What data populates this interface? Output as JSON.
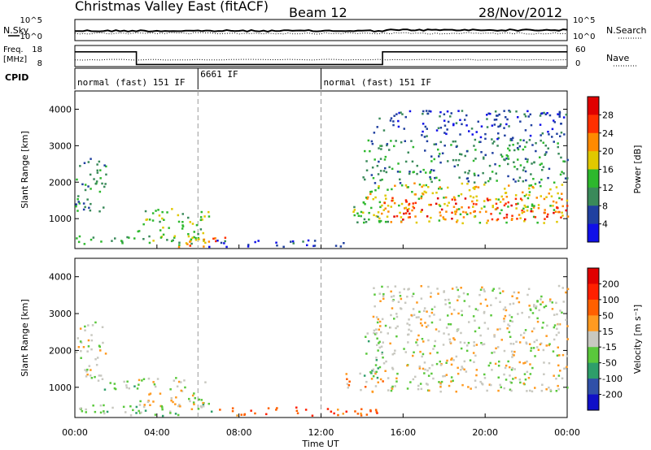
{
  "header": {
    "title": "Christmas Valley East (fitACF)",
    "beam": "Beam 12",
    "date": "28/Nov/2012"
  },
  "params": {
    "nsky_label": "N.Sky",
    "nsearch_label": "N.Search",
    "noise_ticks": [
      "10^5",
      "10^0"
    ],
    "freq_label": "Freq.",
    "freq_unit": "[MHz]",
    "freq_ticks": [
      "18",
      "8"
    ],
    "nave_label": "Nave",
    "nave_ticks": [
      "60",
      "0"
    ],
    "cpid_label": "CPID",
    "cpid_segments": [
      {
        "label": "normal (fast) 151 IF",
        "start_h": 0,
        "end_h": 6
      },
      {
        "label": "6661 IF",
        "start_h": 6,
        "end_h": 12
      },
      {
        "label": "normal (fast) 151 IF",
        "start_h": 12,
        "end_h": 24
      }
    ],
    "freq_series": [
      {
        "h": 0,
        "v": 15
      },
      {
        "h": 3,
        "v": 15
      },
      {
        "h": 3,
        "v": 9
      },
      {
        "h": 15,
        "v": 9
      },
      {
        "h": 15,
        "v": 15
      },
      {
        "h": 24,
        "v": 15
      }
    ]
  },
  "chart_data": [
    {
      "type": "heatmap",
      "name": "power",
      "ylabel": "Slant Range [km]",
      "y_ticks": [
        "1000",
        "2000",
        "3000",
        "4000"
      ],
      "colorbar_label": "Power [dB]",
      "colorbar_ticks": [
        "4",
        "8",
        "12",
        "16",
        "20",
        "24",
        "28"
      ],
      "colorbar_colors": [
        "#1010e8",
        "#2040a0",
        "#3a8a5a",
        "#2db82d",
        "#e0c800",
        "#ff8a00",
        "#ff3000",
        "#e00000"
      ],
      "xlim_h": [
        0,
        24
      ],
      "ylim_km": [
        180,
        4500
      ],
      "regions": [
        {
          "t0": 0.0,
          "t1": 1.5,
          "r0": 1200,
          "r1": 2800,
          "level": 2
        },
        {
          "t0": 0.0,
          "t1": 6.0,
          "r0": 300,
          "r1": 550,
          "level": 3
        },
        {
          "t0": 3.0,
          "t1": 6.5,
          "r0": 400,
          "r1": 1300,
          "level": 3
        },
        {
          "t0": 5.0,
          "t1": 7.5,
          "r0": 250,
          "r1": 550,
          "level": 5
        },
        {
          "t0": 6.5,
          "t1": 13.5,
          "r0": 250,
          "r1": 450,
          "level": 1
        },
        {
          "t0": 13.5,
          "t1": 15.5,
          "r0": 800,
          "r1": 1500,
          "level": 3
        },
        {
          "t0": 14.0,
          "t1": 24.0,
          "r0": 900,
          "r1": 2000,
          "level": 4
        },
        {
          "t0": 15.0,
          "t1": 24.0,
          "r0": 1000,
          "r1": 1600,
          "level": 6
        },
        {
          "t0": 14.0,
          "t1": 24.0,
          "r0": 2000,
          "r1": 3200,
          "level": 2
        },
        {
          "t0": 14.5,
          "t1": 24.0,
          "r0": 3200,
          "r1": 4000,
          "level": 1
        }
      ]
    },
    {
      "type": "heatmap",
      "name": "velocity",
      "ylabel": "Slant Range [km]",
      "y_ticks": [
        "1000",
        "2000",
        "3000",
        "4000"
      ],
      "colorbar_label": "Velocity [m s⁻¹]",
      "colorbar_ticks": [
        "200",
        "100",
        "50",
        "15",
        "-15",
        "-50",
        "-100",
        "-200"
      ],
      "colorbar_colors": [
        "#1010c8",
        "#3050a8",
        "#2e9e6a",
        "#5ac83c",
        "#c8c8c0",
        "#ff9a20",
        "#ff6000",
        "#ff2000",
        "#e00000"
      ],
      "xlim_h": [
        0,
        24
      ],
      "ylim_km": [
        180,
        4500
      ],
      "regions": [
        {
          "t0": 0.0,
          "t1": 1.5,
          "r0": 1200,
          "r1": 2800,
          "level": 4
        },
        {
          "t0": 1.0,
          "t1": 3.0,
          "r0": 900,
          "r1": 1200,
          "level": 3
        },
        {
          "t0": 3.0,
          "t1": 6.5,
          "r0": 400,
          "r1": 1300,
          "level": 4
        },
        {
          "t0": 0.0,
          "t1": 7.0,
          "r0": 250,
          "r1": 550,
          "level": 3
        },
        {
          "t0": 7.0,
          "t1": 15.0,
          "r0": 250,
          "r1": 500,
          "level": 6
        },
        {
          "t0": 13.0,
          "t1": 15.0,
          "r0": 900,
          "r1": 1400,
          "level": 5
        },
        {
          "t0": 14.0,
          "t1": 15.0,
          "r0": 1100,
          "r1": 2500,
          "level": 3
        },
        {
          "t0": 15.0,
          "t1": 24.0,
          "r0": 900,
          "r1": 2100,
          "level": 4
        },
        {
          "t0": 14.5,
          "t1": 24.0,
          "r0": 2100,
          "r1": 3800,
          "level": 4
        }
      ]
    }
  ],
  "xaxis": {
    "ticks": [
      "00:00",
      "04:00",
      "08:00",
      "12:00",
      "16:00",
      "20:00",
      "00:00"
    ],
    "label": "Time UT"
  }
}
